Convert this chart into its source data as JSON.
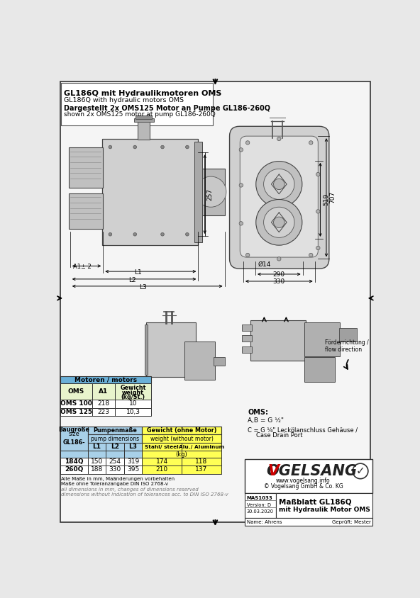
{
  "title_bold": "GL186Q mit Hydraulikmotoren OMS",
  "title_normal": "GL186Q with hydraulic motors OMS",
  "subtitle_bold": "Dargestellt 2x OMS125 Motor an Pumpe GL186-260Q",
  "subtitle_normal": "shown 2x OMS125 motor at pump GL186-260Q",
  "page_bg": "#e8e8e8",
  "inner_bg": "#f5f5f5",
  "border_color": "#222222",
  "table1_header_bg": "#6ab0d8",
  "table1_data_bg": "#e8f4cc",
  "table2_yellow_bg": "#ffff55",
  "table2_blue_bg": "#a8d0e8",
  "dim_257": "257",
  "dim_707": "707",
  "dim_519": "519",
  "dim_phi14": "Ø14",
  "dim_290": "290",
  "dim_330": "330",
  "dim_L1": "L1",
  "dim_L2": "L2",
  "dim_L3": "L3",
  "dim_A1": "A1± 2",
  "motoren_header": "Motoren / motors",
  "col_oms": "OMS",
  "col_a1": "A1",
  "oms_rows": [
    [
      "OMS 100",
      "218",
      "10"
    ],
    [
      "OMS 125",
      "223",
      "10,3"
    ]
  ],
  "baugr_header": "Baugröße",
  "baugr_header2": "size",
  "baugr_header3": "GL186-",
  "pump_header": "Pumpenmaße",
  "pump_header2": "pump dimensions",
  "gewicht_header": "Gewicht (ohne Motor)",
  "gewicht_header2": "weight (without motor)",
  "col_L1": "L1",
  "col_L2": "L2",
  "col_L3": "L3",
  "col_stahl": "Stahl/ steel",
  "col_alu": "Alu./ Aluminum",
  "col_kg": "(kg)",
  "pump_rows": [
    [
      "184Q",
      "150",
      "254",
      "319",
      "174",
      "118"
    ],
    [
      "260Q",
      "188",
      "330",
      "395",
      "210",
      "137"
    ]
  ],
  "notes_de1": "Alle Maße in mm, Maänderungen vorbehalten",
  "notes_de2": "Maße ohne Toleranzangabe DIN ISO 2768-v",
  "notes_en1": "all dimensions in mm, changes of dimensions reserved",
  "notes_en2": "dimensions without indication of tolerances acc. to DIN ISO 2768-v",
  "oms_label": "OMS:",
  "oms_ab": "A,B = G ½\"",
  "oms_c1": "C = G ¼\" Leckölanschluss Gehäuse /",
  "oms_c2": "Case Drain Port",
  "foerder": "Förderrichtung /\nflow direction",
  "vogelsang_url": "www.vogelsang.info",
  "vogelsang_copy": "© Vogelsang GmbH & Co. KG",
  "mas_nr": "MAS1033",
  "version": "Version: D",
  "date": "30.03.2020",
  "name": "Name: Ahrens",
  "geprueft": "Geprüft: Mester",
  "title_sheet": "Maßblatt GL186Q",
  "subtitle_sheet": "mit Hydraulik Motor OMS",
  "gray_light": "#d0d0d0",
  "gray_med": "#b0b0b0",
  "gray_dark": "#888888"
}
